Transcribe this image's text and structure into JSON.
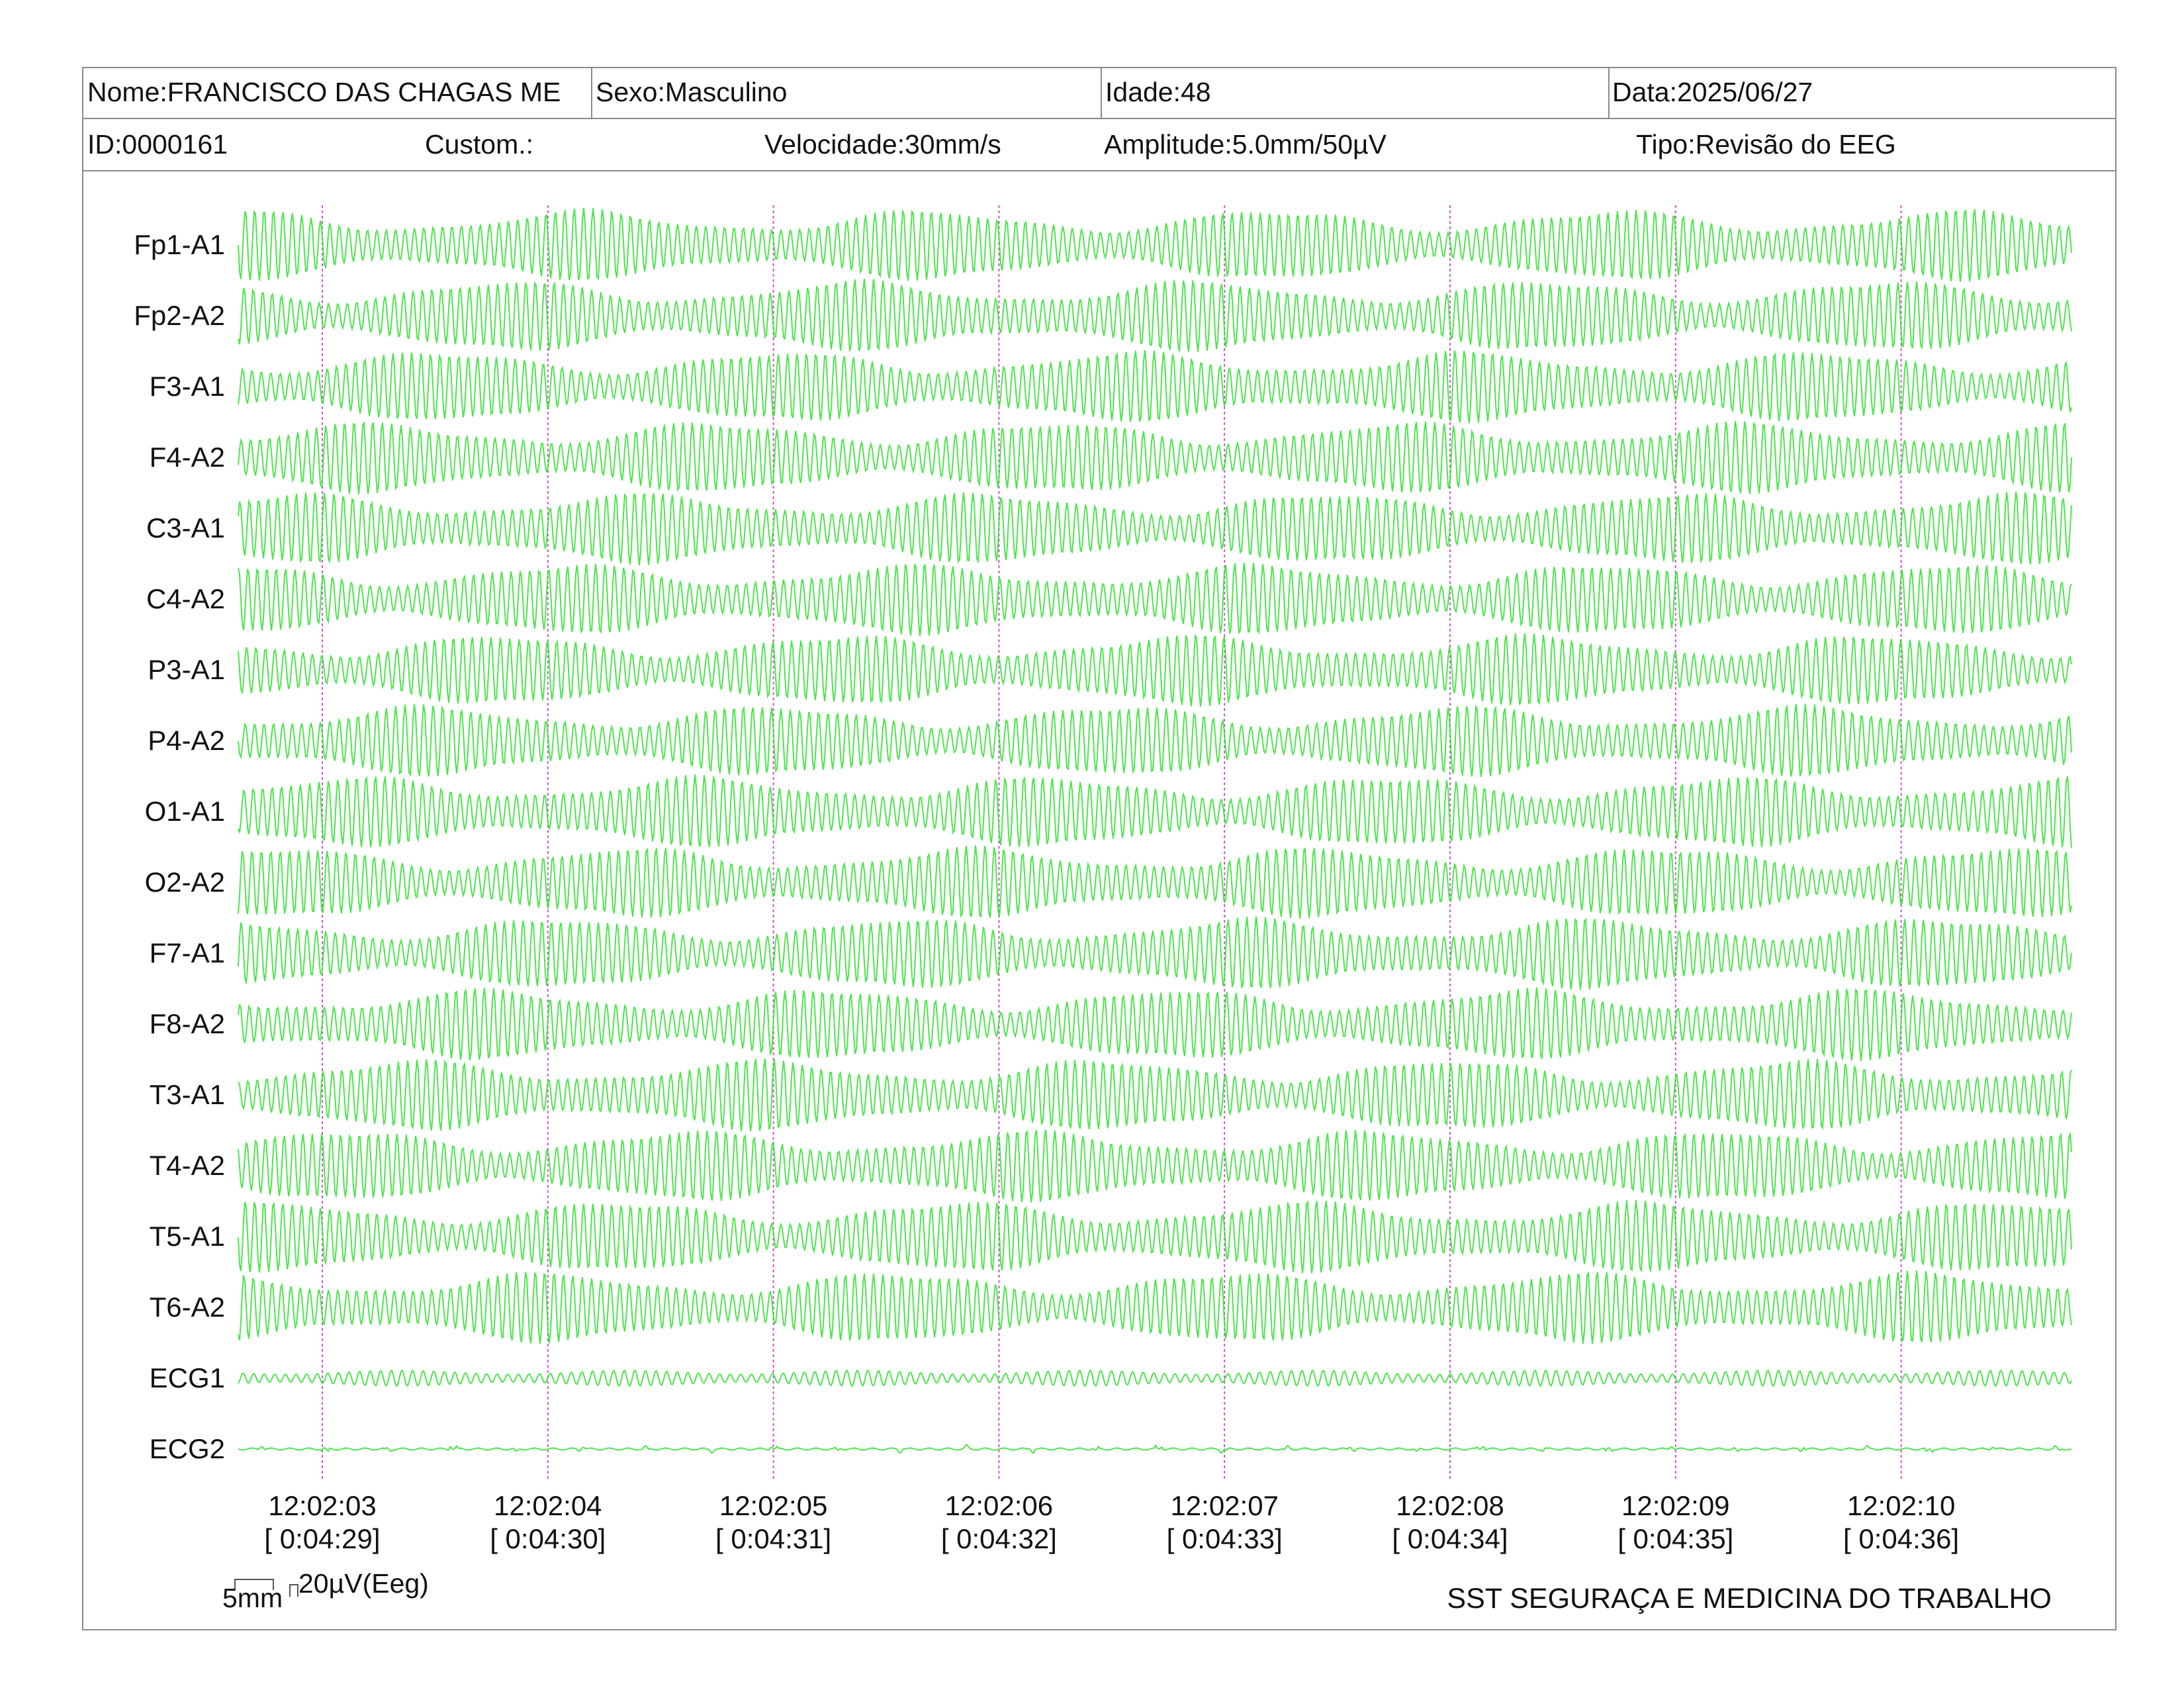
{
  "header": {
    "nome": "Nome:FRANCISCO DAS CHAGAS ME",
    "sexo": "Sexo:Masculino",
    "idade": "Idade:48",
    "data": "Data:2025/06/27",
    "id": "ID:0000161",
    "custom": "Custom.:",
    "velocidade": "Velocidade:30mm/s",
    "amplitude": "Amplitude:5.0mm/50µV",
    "tipo": "Tipo:Revisão do EEG"
  },
  "channels": [
    "Fp1-A1",
    "Fp2-A2",
    "F3-A1",
    "F4-A2",
    "C3-A1",
    "C4-A2",
    "P3-A1",
    "P4-A2",
    "O1-A1",
    "O2-A2",
    "F7-A1",
    "F8-A2",
    "T3-A1",
    "T4-A2",
    "T5-A1",
    "T6-A2",
    "ECG1",
    "ECG2"
  ],
  "time_marks": [
    {
      "clock": "12:02:03",
      "elapsed": "[ 0:04:29]"
    },
    {
      "clock": "12:02:04",
      "elapsed": "[ 0:04:30]"
    },
    {
      "clock": "12:02:05",
      "elapsed": "[ 0:04:31]"
    },
    {
      "clock": "12:02:06",
      "elapsed": "[ 0:04:32]"
    },
    {
      "clock": "12:02:07",
      "elapsed": "[ 0:04:33]"
    },
    {
      "clock": "12:02:08",
      "elapsed": "[ 0:04:34]"
    },
    {
      "clock": "12:02:09",
      "elapsed": "[ 0:04:35]"
    },
    {
      "clock": "12:02:10",
      "elapsed": "[ 0:04:36]"
    }
  ],
  "scale": {
    "time_label": "5mm",
    "amp_label": "20µV(Eeg)"
  },
  "footer": {
    "company": "SST SEGURAÇA E MEDICINA DO TRABALHO"
  },
  "colors": {
    "trace": "#2ee02e",
    "marker": "#d34fd3",
    "border": "#8a8a8a"
  }
}
